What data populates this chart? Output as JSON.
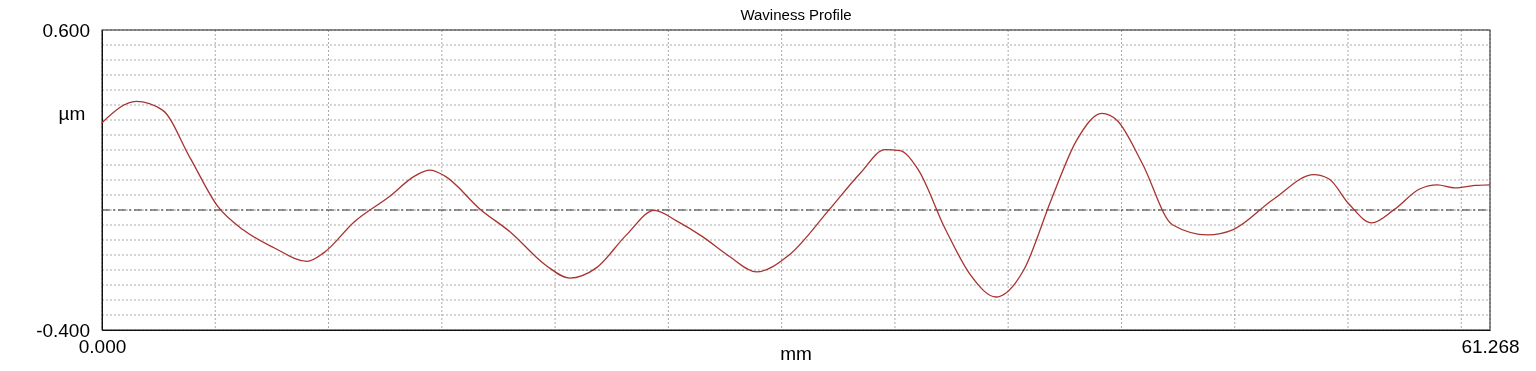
{
  "chart_data": {
    "type": "line",
    "title": "Waviness Profile",
    "xlabel": "mm",
    "ylabel": "µm",
    "xlim": [
      0,
      61.268
    ],
    "xticks": [
      {
        "value": 0,
        "label": "0.000"
      },
      {
        "value": 5,
        "label": null
      },
      {
        "value": 10,
        "label": null
      },
      {
        "value": 15,
        "label": null
      },
      {
        "value": 20,
        "label": null
      },
      {
        "value": 25,
        "label": null
      },
      {
        "value": 30,
        "label": null
      },
      {
        "value": 35,
        "label": null
      },
      {
        "value": 40,
        "label": null
      },
      {
        "value": 45,
        "label": null
      },
      {
        "value": 50,
        "label": null
      },
      {
        "value": 55,
        "label": null
      },
      {
        "value": 60,
        "label": null
      },
      {
        "value": 61.268,
        "label": "61.268"
      }
    ],
    "ylim": [
      -0.4,
      0.6
    ],
    "yticks": [
      {
        "value": -0.4,
        "label": "-0.400"
      },
      {
        "value": -0.35,
        "label": null
      },
      {
        "value": -0.3,
        "label": null
      },
      {
        "value": -0.25,
        "label": null
      },
      {
        "value": -0.2,
        "label": null
      },
      {
        "value": -0.15,
        "label": null
      },
      {
        "value": -0.1,
        "label": null
      },
      {
        "value": -0.05,
        "label": null
      },
      {
        "value": 0,
        "label": null
      },
      {
        "value": 0.05,
        "label": null
      },
      {
        "value": 0.1,
        "label": null
      },
      {
        "value": 0.15,
        "label": null
      },
      {
        "value": 0.2,
        "label": null
      },
      {
        "value": 0.25,
        "label": null
      },
      {
        "value": 0.3,
        "label": null
      },
      {
        "value": 0.35,
        "label": null
      },
      {
        "value": 0.4,
        "label": null
      },
      {
        "value": 0.45,
        "label": null
      },
      {
        "value": 0.5,
        "label": null
      },
      {
        "value": 0.55,
        "label": null
      },
      {
        "value": 0.6,
        "label": "0.600"
      }
    ],
    "grid": true,
    "ref_lines": [
      {
        "axis": "y",
        "value": 0,
        "color": "#333333",
        "line_style": "dashdot"
      }
    ],
    "series": [
      {
        "color": "#a8332f",
        "x": [
          0,
          1.51,
          2.67,
          3.9,
          5.12,
          6.23,
          7.57,
          9.06,
          9.8,
          11.13,
          12.69,
          13.8,
          14.47,
          15.14,
          16.7,
          18.03,
          19.59,
          20.64,
          21.82,
          23.15,
          24.38,
          25.38,
          26.49,
          27.7,
          28.89,
          30.33,
          32.11,
          33.45,
          34.56,
          35.22,
          36,
          37.24,
          38.35,
          39.46,
          40.68,
          41.91,
          43.02,
          44.14,
          44.8,
          45.92,
          47.25,
          48.81,
          49.91,
          51.71,
          53.49,
          54.15,
          55.05,
          56.05,
          57.05,
          58.16,
          58.94,
          59.72,
          60.61,
          61.268
        ],
        "values": [
          0.291,
          0.362,
          0.333,
          0.172,
          0.011,
          -0.066,
          -0.125,
          -0.171,
          -0.142,
          -0.04,
          0.045,
          0.113,
          0.133,
          0.113,
          0.002,
          -0.074,
          -0.184,
          -0.227,
          -0.193,
          -0.083,
          -0.001,
          -0.037,
          -0.088,
          -0.155,
          -0.206,
          -0.15,
          0.002,
          0.121,
          0.201,
          0.198,
          0.138,
          -0.066,
          -0.218,
          -0.29,
          -0.201,
          0.036,
          0.232,
          0.322,
          0.299,
          0.155,
          -0.049,
          -0.083,
          -0.066,
          0.036,
          0.118,
          0.104,
          0.019,
          -0.043,
          0.002,
          0.07,
          0.084,
          0.074,
          0.082,
          0.084
        ]
      }
    ]
  }
}
